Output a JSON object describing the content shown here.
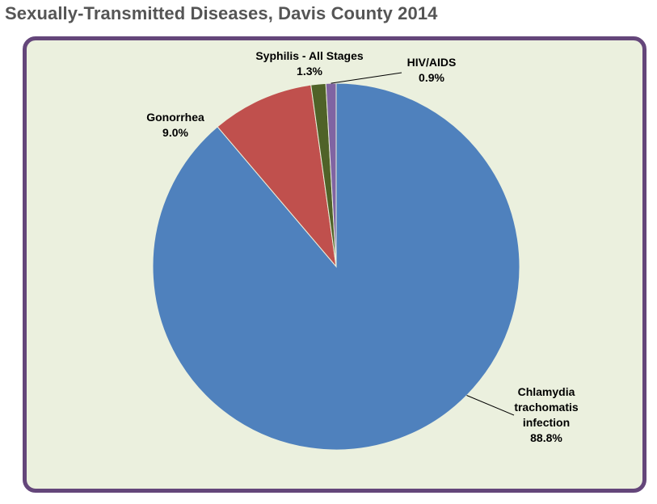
{
  "page": {
    "title": "Sexually-Transmitted Diseases, Davis County 2014"
  },
  "chart_data": {
    "type": "pie",
    "title": "Sexually-Transmitted Diseases, Davis County 2014",
    "start": "12 o'clock",
    "direction": "clockwise",
    "legend": "none (data labels on slices)",
    "slices": [
      {
        "label_lines": [
          "Chlamydia",
          "trachomatis",
          "infection"
        ],
        "value": 88.8,
        "percent_label": "88.8%",
        "color": "#4f81bd"
      },
      {
        "label_lines": [
          "Gonorrhea"
        ],
        "value": 9.0,
        "percent_label": "9.0%",
        "color": "#c0504d"
      },
      {
        "label_lines": [
          "Syphilis - All Stages"
        ],
        "value": 1.3,
        "percent_label": "1.3%",
        "color": "#4f6228"
      },
      {
        "label_lines": [
          "HIV/AIDS"
        ],
        "value": 0.9,
        "percent_label": "0.9%",
        "color": "#8064a2"
      }
    ]
  },
  "colors": {
    "frame_border": "#64467a",
    "plot_background": "#ebf0de",
    "title_text": "#555555"
  }
}
